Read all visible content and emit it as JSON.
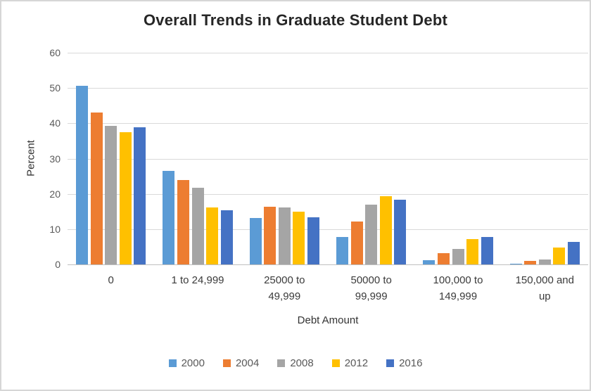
{
  "chart_data": {
    "type": "bar",
    "title": "Overall Trends in Graduate Student Debt",
    "xlabel": "Debt Amount",
    "ylabel": "Percent",
    "ylim": [
      0,
      60
    ],
    "ytick_step": 10,
    "grid": true,
    "legend_position": "bottom",
    "categories": [
      "0",
      "1 to 24,999",
      "25000 to\n49,999",
      "50000 to\n99,999",
      "100,000 to\n149,999",
      "150,000 and\nup"
    ],
    "series": [
      {
        "name": "2000",
        "color": "#5B9BD5",
        "values": [
          50.7,
          26.6,
          13.1,
          7.7,
          1.3,
          0.2
        ]
      },
      {
        "name": "2004",
        "color": "#ED7D31",
        "values": [
          43.0,
          24.0,
          16.4,
          12.1,
          3.2,
          1.1
        ]
      },
      {
        "name": "2008",
        "color": "#A5A5A5",
        "values": [
          39.2,
          21.8,
          16.1,
          17.0,
          4.3,
          1.5
        ]
      },
      {
        "name": "2012",
        "color": "#FFC000",
        "values": [
          37.5,
          16.2,
          14.9,
          19.3,
          7.1,
          4.7
        ]
      },
      {
        "name": "2016",
        "color": "#4472C4",
        "values": [
          38.8,
          15.3,
          13.4,
          18.3,
          7.7,
          6.3
        ]
      }
    ]
  }
}
